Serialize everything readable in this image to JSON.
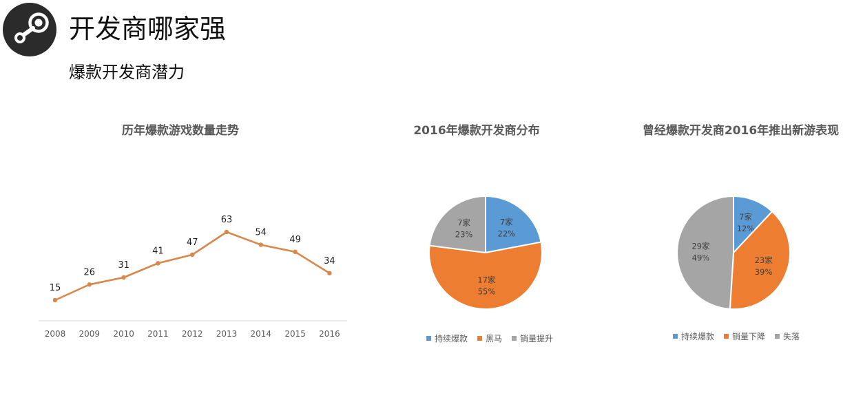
{
  "header": {
    "title": "开发商哪家强",
    "subtitle": "爆款开发商潜力",
    "logo_icon": "steam-logo-icon"
  },
  "colors": {
    "line": "#D9874A",
    "blue": "#5B9BD5",
    "orange": "#ED7D31",
    "gray": "#A5A5A5",
    "axis": "#D9D9D9"
  },
  "chart_data": [
    {
      "type": "line",
      "title": "历年爆款游戏数量走势",
      "xlabel": "",
      "ylabel": "",
      "x": [
        "2008",
        "2009",
        "2010",
        "2011",
        "2012",
        "2013",
        "2014",
        "2015",
        "2016"
      ],
      "values": [
        15,
        26,
        31,
        41,
        47,
        63,
        54,
        49,
        34
      ],
      "ylim": [
        0,
        70
      ],
      "grid": false,
      "legend": false
    },
    {
      "type": "pie",
      "title": "2016年爆款开发商分布",
      "slices": [
        {
          "name": "持续爆款",
          "count_label": "7家",
          "percent_label": "22%",
          "value": 22
        },
        {
          "name": "黑马",
          "count_label": "17家",
          "percent_label": "55%",
          "value": 55
        },
        {
          "name": "销量提升",
          "count_label": "7家",
          "percent_label": "23%",
          "value": 23
        }
      ],
      "legend": "bottom"
    },
    {
      "type": "pie",
      "title": "曾经爆款开发商2016年推出新游表现",
      "slices": [
        {
          "name": "持续爆款",
          "count_label": "7家",
          "percent_label": "12%",
          "value": 12
        },
        {
          "name": "销量下降",
          "count_label": "23家",
          "percent_label": "39%",
          "value": 39
        },
        {
          "name": "失落",
          "count_label": "29家",
          "percent_label": "49%",
          "value": 49
        }
      ],
      "legend": "bottom"
    }
  ]
}
